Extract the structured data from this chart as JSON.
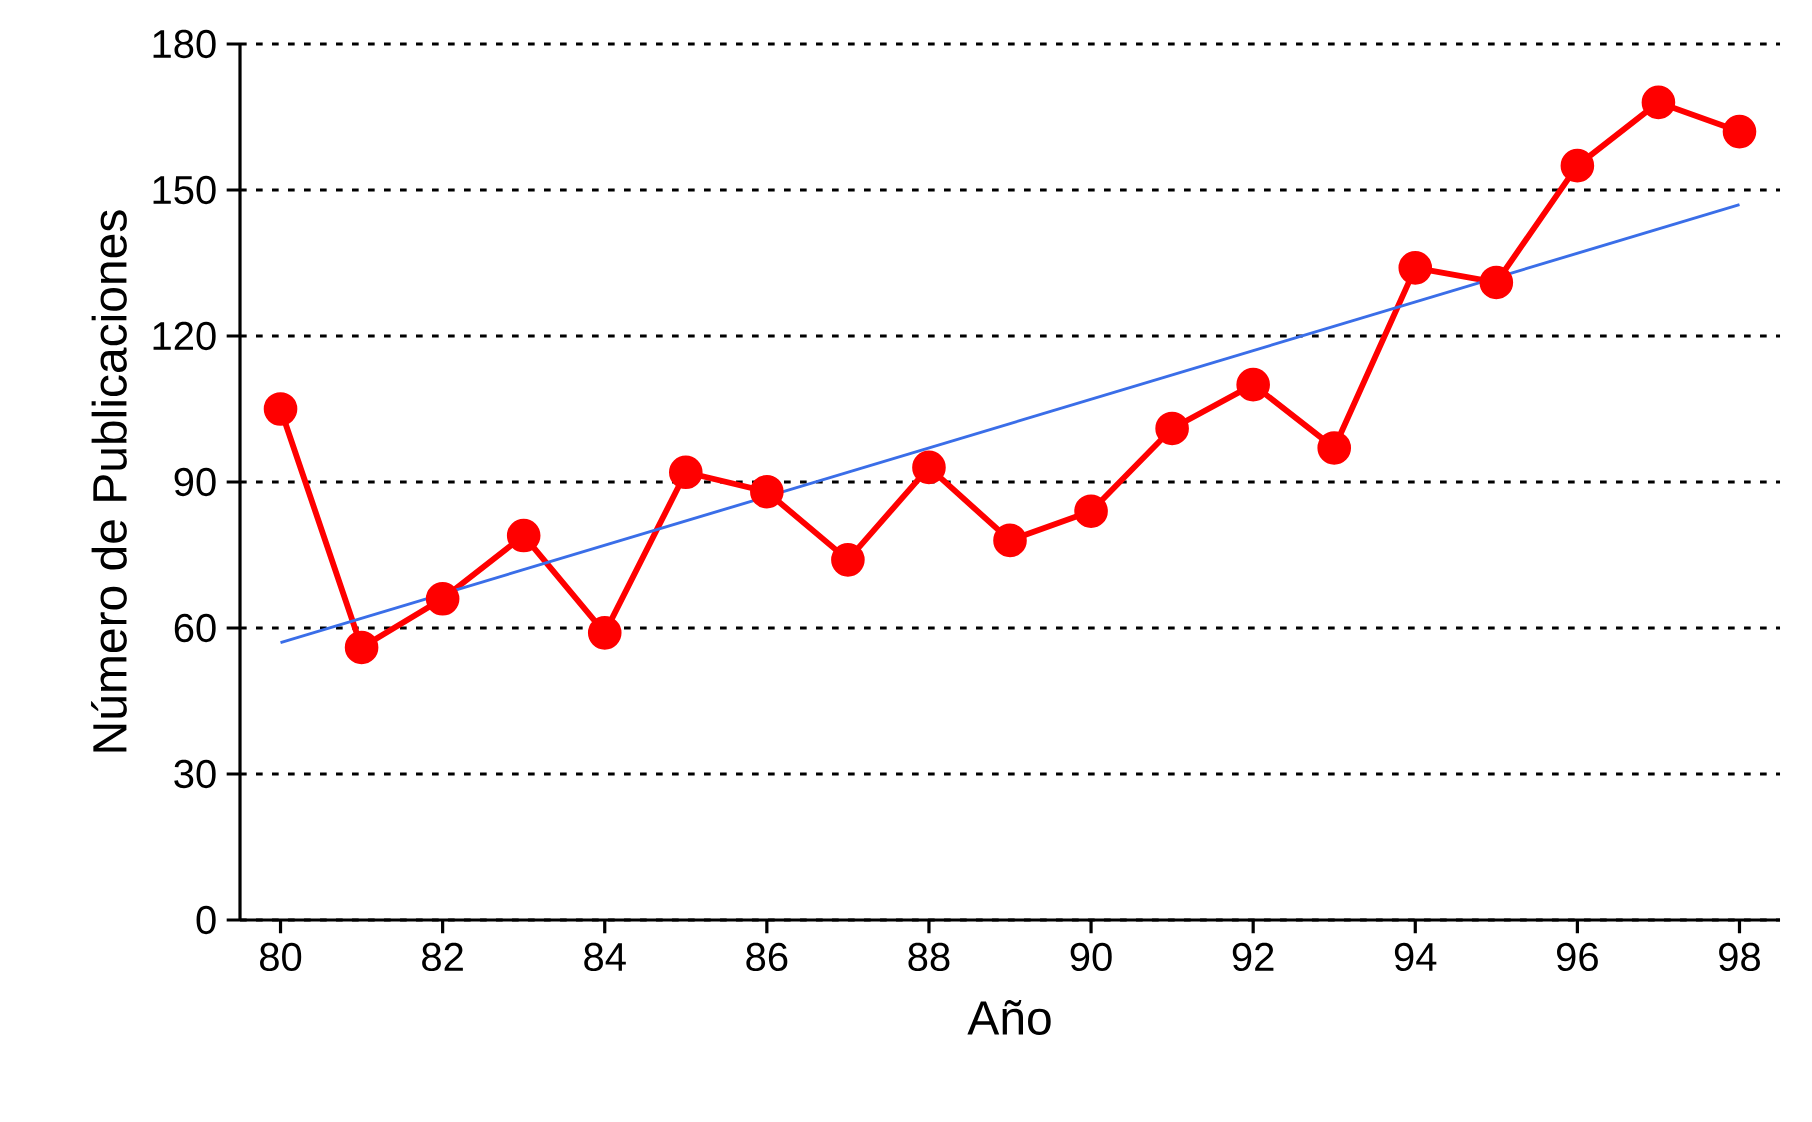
{
  "chart_data": {
    "type": "line",
    "xlabel": "Año",
    "ylabel": "Número de Publicaciones",
    "x": [
      80,
      81,
      82,
      83,
      84,
      85,
      86,
      87,
      88,
      89,
      90,
      91,
      92,
      93,
      94,
      95,
      96,
      97,
      98
    ],
    "series": [
      {
        "color": "#ff0000",
        "values": [
          105,
          56,
          66,
          79,
          59,
          92,
          88,
          74,
          93,
          78,
          84,
          101,
          110,
          97,
          134,
          131,
          155,
          168,
          162
        ]
      },
      {
        "color": "#3a6ee8",
        "x": [
          80,
          98
        ],
        "values": [
          57,
          147
        ],
        "marker": "none"
      }
    ],
    "xlim": [
      79.5,
      98.5
    ],
    "ylim": [
      0,
      180
    ],
    "xticks": [
      80,
      82,
      84,
      86,
      88,
      90,
      92,
      94,
      96,
      98
    ],
    "yticks": [
      0,
      30,
      60,
      90,
      120,
      150,
      180
    ],
    "grid": "y",
    "marker": "circle"
  }
}
